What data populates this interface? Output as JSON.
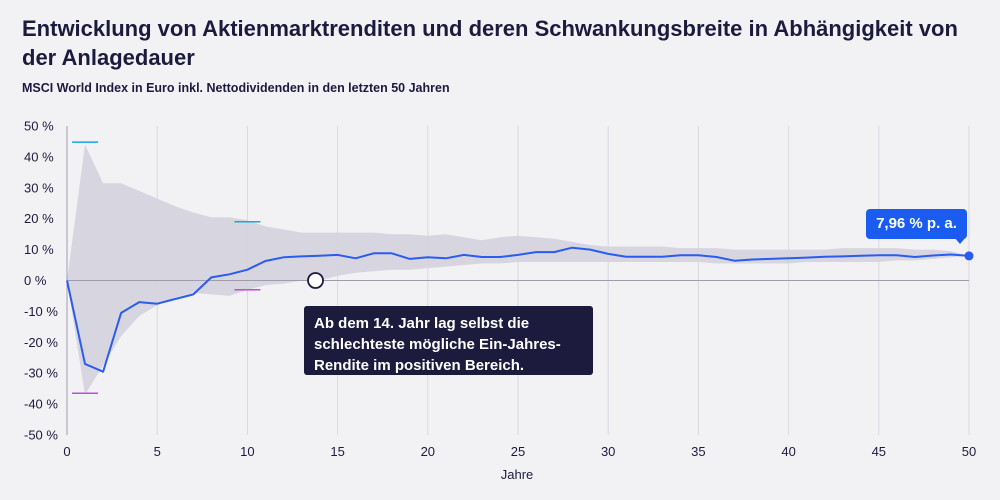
{
  "header": {
    "title": "Entwicklung von Aktienmarktrenditen und deren Schwankungsbreite in Abhängigkeit von der Anlagedauer",
    "subtitle": "MSCI World Index in Euro inkl. Nettodividenden in den letzten 50 Jahren"
  },
  "colors": {
    "line": "#2a5cf0",
    "band": "#d4d1de",
    "grid": "#d9d9e0",
    "callout_bg": "#1c1a3d",
    "endlabel_bg": "#1a5cf0",
    "max_marker": "#1aa6e0",
    "min_marker": "#c34bd9"
  },
  "annotations": {
    "callout": "Ab dem 14. Jahr lag selbst die schlechteste mögliche Ein-Jahres-Rendite im positiven Bereich.",
    "end_label": "7,96 % p. a."
  },
  "chart_data": {
    "type": "line",
    "title": "",
    "xlabel": "Jahre",
    "ylabel": "",
    "xlim": [
      0,
      50
    ],
    "ylim": [
      -50,
      50
    ],
    "x_ticks": [
      0,
      5,
      10,
      15,
      20,
      25,
      30,
      35,
      40,
      45,
      50
    ],
    "y_ticks": [
      -50,
      -40,
      -30,
      -20,
      -10,
      0,
      10,
      20,
      30,
      40,
      50
    ],
    "y_tick_labels": [
      "-50 %",
      "-40 %",
      "-30 %",
      "-20 %",
      "-10 %",
      "0 %",
      "10 %",
      "20 %",
      "30 %",
      "40 %",
      "50 %"
    ],
    "grid": "vertical",
    "series": [
      {
        "values_x": [
          0,
          1,
          2,
          3,
          4,
          5,
          6,
          7,
          8,
          9,
          10,
          11,
          12,
          13,
          14,
          15,
          16,
          17,
          18,
          19,
          20,
          21,
          22,
          23,
          24,
          25,
          26,
          27,
          28,
          29,
          30,
          31,
          32,
          33,
          34,
          35,
          36,
          37,
          38,
          39,
          40,
          41,
          42,
          43,
          44,
          45,
          46,
          47,
          48,
          49,
          50
        ],
        "values": [
          0,
          -27,
          -29.5,
          -10.5,
          -7,
          -7.5,
          -6,
          -4.5,
          1,
          2,
          3.5,
          6.3,
          7.5,
          7.8,
          8,
          8.3,
          7.2,
          8.8,
          8.8,
          7,
          7.5,
          7.2,
          8.3,
          7.6,
          7.6,
          8.3,
          9.2,
          9.2,
          10.6,
          10,
          8.6,
          7.7,
          7.7,
          7.7,
          8.2,
          8.2,
          7.6,
          6.4,
          6.8,
          7,
          7.2,
          7.4,
          7.7,
          7.8,
          8,
          8.2,
          8.2,
          7.6,
          8.1,
          8.4,
          7.96
        ]
      }
    ],
    "band": {
      "name": "",
      "upper": [
        0,
        44,
        31.5,
        31.5,
        29,
        26.5,
        24,
        22,
        20.5,
        20.5,
        19.5,
        17.5,
        16.5,
        15.5,
        15.5,
        15.5,
        15.5,
        15.5,
        15,
        15,
        14.5,
        15,
        14,
        13,
        14,
        14.5,
        14,
        13.5,
        12.5,
        11.5,
        11,
        11,
        11,
        11,
        10.5,
        10.5,
        10.5,
        10,
        10,
        10,
        10,
        10,
        10,
        10.5,
        10.5,
        10.5,
        10.5,
        10,
        10,
        9.5,
        8
      ],
      "lower": [
        0,
        -37,
        -27.5,
        -18,
        -11.5,
        -8,
        -5.5,
        -4,
        -4.5,
        -5,
        -3,
        -1.5,
        -1,
        0,
        0,
        1.5,
        2.5,
        3,
        3.5,
        3.5,
        4,
        4.5,
        5,
        5.5,
        5.5,
        6,
        6,
        6,
        6,
        6,
        6,
        6,
        6,
        6,
        6,
        6,
        5.5,
        5.5,
        5.5,
        5.5,
        5.5,
        6,
        6,
        6,
        6,
        6,
        6.5,
        6.5,
        7,
        7.5,
        7.96
      ]
    },
    "max_markers": [
      {
        "x": 1,
        "y": 44.8
      },
      {
        "x": 10,
        "y": 19
      }
    ],
    "min_markers": [
      {
        "x": 1,
        "y": -36.5
      },
      {
        "x": 10,
        "y": -3
      }
    ],
    "highlight_point": {
      "x": 13,
      "y": 0
    },
    "end_value": 7.96
  }
}
